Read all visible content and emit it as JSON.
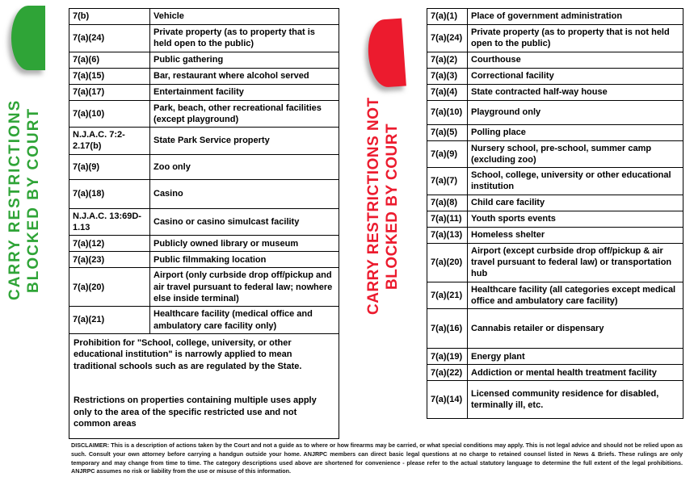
{
  "left_panel": {
    "icon": "green-semicircle-icon",
    "heading_line1": "CARRY RESTRICTIONS",
    "heading_line2": "BLOCKED BY COURT",
    "accent_color": "#2FA437"
  },
  "right_panel": {
    "icon": "red-semicircle-icon",
    "heading_line1": "CARRY RESTRICTIONS NOT",
    "heading_line2": "BLOCKED BY COURT",
    "accent_color": "#EC1B2E"
  },
  "left_table": {
    "rows": [
      {
        "code": "7(b)",
        "desc": "Vehicle"
      },
      {
        "code": "7(a)(24)",
        "desc": "Private property (as to property that is held open to the public)"
      },
      {
        "code": "7(a)(6)",
        "desc": "Public gathering"
      },
      {
        "code": "7(a)(15)",
        "desc": "Bar, restaurant where alcohol served"
      },
      {
        "code": "7(a)(17)",
        "desc": "Entertainment facility"
      },
      {
        "code": "7(a)(10)",
        "desc": "Park, beach, other recreational facilities (except playground)"
      },
      {
        "code": "N.J.A.C. 7:2-2.17(b)",
        "desc": "State Park Service property"
      },
      {
        "code": "7(a)(9)",
        "desc": "Zoo only"
      },
      {
        "code": "7(a)(18)",
        "desc": "Casino"
      },
      {
        "code": "N.J.A.C. 13:69D-1.13",
        "desc": "Casino or casino simulcast facility"
      },
      {
        "code": "7(a)(12)",
        "desc": "Publicly owned library or museum"
      },
      {
        "code": "7(a)(23)",
        "desc": "Public filmmaking location"
      },
      {
        "code": "7(a)(20)",
        "desc": "Airport (only curbside drop off/pickup and air travel pursuant to federal law; nowhere else inside terminal)"
      },
      {
        "code": "7(a)(21)",
        "desc": "Healthcare facility (medical office and ambulatory care facility only)"
      }
    ],
    "footnote_1": "Prohibition for \"School, college, university, or other educational institution\" is narrowly applied to mean traditional schools such as are regulated by the State.",
    "footnote_2": "Restrictions on properties containing multiple uses apply only to the area of the specific restricted use and not common areas"
  },
  "right_table": {
    "rows": [
      {
        "code": "7(a)(1)",
        "desc": "Place of government administration"
      },
      {
        "code": "7(a)(24)",
        "desc": "Private property (as to property that is not held open to the public)"
      },
      {
        "code": "7(a)(2)",
        "desc": "Courthouse"
      },
      {
        "code": "7(a)(3)",
        "desc": "Correctional facility"
      },
      {
        "code": "7(a)(4)",
        "desc": "State contracted half-way house"
      },
      {
        "code": "7(a)(10)",
        "desc": "Playground only"
      },
      {
        "code": "7(a)(5)",
        "desc": "Polling place"
      },
      {
        "code": "7(a)(9)",
        "desc": "Nursery school, pre-school, summer camp (excluding zoo)"
      },
      {
        "code": "7(a)(7)",
        "desc": "School, college, university or other educational institution"
      },
      {
        "code": "7(a)(8)",
        "desc": "Child care facility"
      },
      {
        "code": "7(a)(11)",
        "desc": "Youth sports events"
      },
      {
        "code": "7(a)(13)",
        "desc": "Homeless shelter"
      },
      {
        "code": "7(a)(20)",
        "desc": "Airport (except curbside drop off/pickup & air travel pursuant to federal law) or transportation hub"
      },
      {
        "code": "7(a)(21)",
        "desc": "Healthcare facility (all categories except medical office and ambulatory care facility)"
      },
      {
        "code": "7(a)(16)",
        "desc": "Cannabis retailer or dispensary"
      },
      {
        "code": "7(a)(19)",
        "desc": "Energy plant"
      },
      {
        "code": "7(a)(22)",
        "desc": "Addiction or mental health treatment facility"
      },
      {
        "code": "7(a)(14)",
        "desc": "Licensed community residence for disabled, terminally ill, etc."
      }
    ]
  },
  "disclaimer": "DISCLAIMER: This is a description of actions taken by the Court and not a guide as to where or how firearms may be carried, or what special conditions may apply. This is not legal advice and should not be relied upon as such. Consult your own attorney before carrying a handgun outside your home. ANJRPC members can direct basic legal questions at no charge to retained counsel listed in News & Briefs. These rulings are only temporary and may change from time to time. The category descriptions used above are shortened for convenience - please refer to the actual statutory language to determine the full extent of the legal prohibitions. ANJRPC assumes no risk or liability from the use or misuse of this information."
}
